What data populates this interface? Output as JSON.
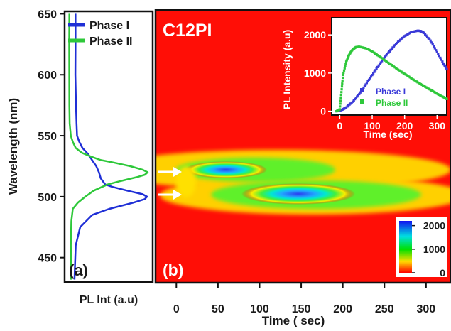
{
  "chart_data": [
    {
      "panel": "(a)",
      "type": "line",
      "xlabel": "PL Int (a.u)",
      "ylabel": "Wavelength (nm)",
      "ylim": [
        430,
        652
      ],
      "yticks": [
        450,
        500,
        550,
        600,
        650
      ],
      "legend": "top-right",
      "series": [
        {
          "name": "Phase I",
          "color": "#1f2fd6",
          "wavelength": [
            432,
            460,
            475,
            485,
            490,
            495,
            498,
            500,
            502,
            505,
            508,
            510,
            515,
            520,
            525,
            530,
            535,
            540,
            545,
            550,
            560,
            575,
            600,
            625,
            650
          ],
          "intensity": [
            0.1,
            0.11,
            0.16,
            0.3,
            0.5,
            0.78,
            0.92,
            0.95,
            0.9,
            0.72,
            0.55,
            0.47,
            0.42,
            0.4,
            0.37,
            0.32,
            0.27,
            0.2,
            0.16,
            0.13,
            0.12,
            0.11,
            0.1,
            0.1,
            0.1
          ]
        },
        {
          "name": "Phase II",
          "color": "#2ec83a",
          "wavelength": [
            432,
            460,
            480,
            490,
            495,
            500,
            505,
            510,
            513,
            516,
            518,
            520,
            522,
            525,
            528,
            530,
            533,
            536,
            540,
            545,
            550,
            560,
            575,
            600,
            625,
            650
          ],
          "intensity": [
            0.06,
            0.06,
            0.07,
            0.09,
            0.15,
            0.24,
            0.34,
            0.5,
            0.66,
            0.84,
            0.93,
            0.96,
            0.9,
            0.75,
            0.55,
            0.4,
            0.28,
            0.18,
            0.11,
            0.08,
            0.06,
            0.05,
            0.05,
            0.05,
            0.05,
            0.05
          ]
        }
      ]
    },
    {
      "panel": "(b)",
      "type": "heatmap",
      "title": "C12PI",
      "xlabel": "Time ( sec)",
      "xticks": [
        0,
        50,
        100,
        150,
        200,
        250,
        300
      ],
      "xlim": [
        -25,
        330
      ],
      "colorbar": {
        "ticks": [
          0,
          1000,
          2000
        ],
        "range": [
          0,
          2200
        ]
      },
      "features": [
        {
          "center_time": 55,
          "center_wavelength": 520,
          "peak": 1800
        },
        {
          "center_time": 150,
          "center_wavelength": 502,
          "peak": 2100
        }
      ],
      "arrows_at_wavelength": [
        520,
        502
      ]
    },
    {
      "panel": "inset",
      "type": "scatter",
      "xlabel": "Time (sec)",
      "ylabel": "PL Intensity (a.u)",
      "xticks": [
        0,
        100,
        200,
        300
      ],
      "yticks": [
        0,
        1000,
        2000
      ],
      "xlim": [
        -25,
        330
      ],
      "ylim": [
        -100,
        2450
      ],
      "legend": "bottom-center",
      "series": [
        {
          "name": "Phase I",
          "color": "#3a3ad8",
          "x": [
            -10,
            0,
            10,
            20,
            40,
            60,
            80,
            100,
            120,
            140,
            160,
            180,
            200,
            220,
            240,
            250,
            260,
            280,
            300,
            320,
            330
          ],
          "y": [
            0,
            20,
            50,
            100,
            250,
            450,
            700,
            950,
            1200,
            1430,
            1640,
            1820,
            1970,
            2070,
            2110,
            2100,
            2050,
            1850,
            1550,
            1250,
            1100
          ]
        },
        {
          "name": "Phase II",
          "color": "#2ec83a",
          "x": [
            -10,
            0,
            5,
            10,
            20,
            30,
            40,
            50,
            60,
            80,
            100,
            120,
            140,
            160,
            180,
            200,
            220,
            240,
            260,
            280,
            300,
            320,
            330
          ],
          "y": [
            0,
            50,
            500,
            950,
            1300,
            1500,
            1620,
            1680,
            1690,
            1650,
            1570,
            1450,
            1330,
            1210,
            1090,
            980,
            870,
            760,
            660,
            560,
            460,
            370,
            320
          ]
        }
      ]
    }
  ]
}
